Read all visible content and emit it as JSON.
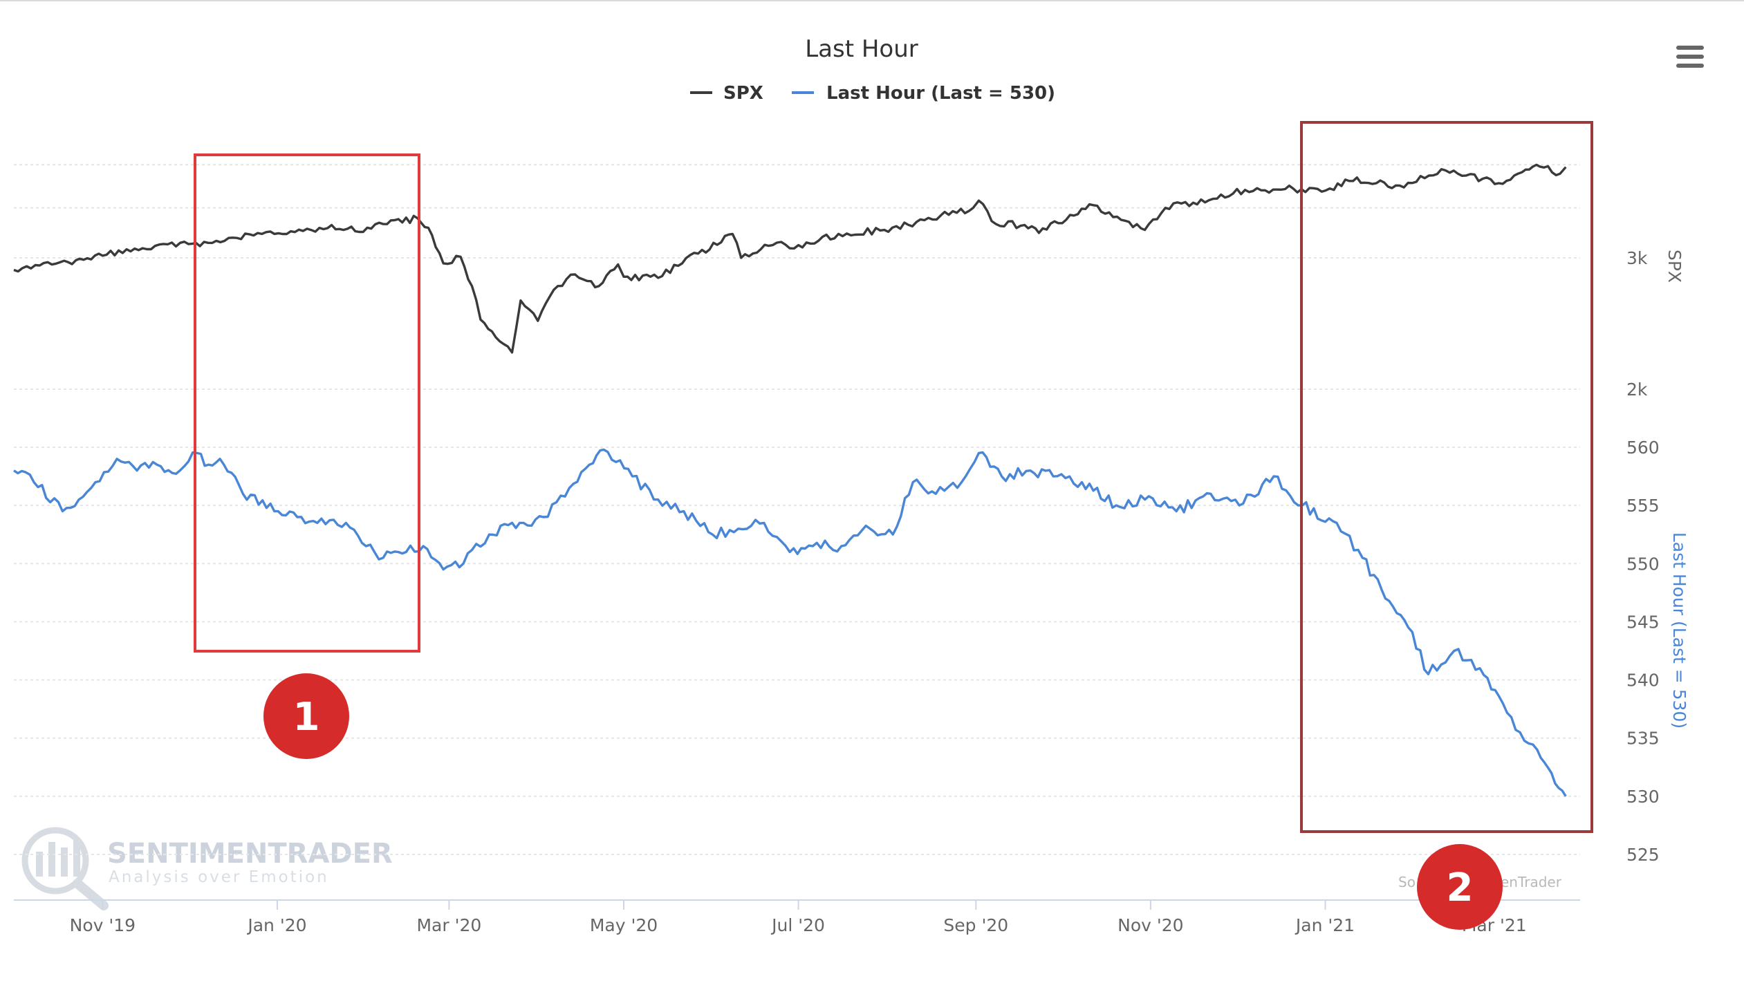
{
  "menu_icon": "hamburger-menu-icon",
  "watermark": {
    "brand": "SENTIMENTRADER",
    "tagline": "Analysis over Emotion",
    "logo_icon": "magnifier-chart-logo-icon",
    "credit_left": "So",
    "credit_right": "enTrader"
  },
  "annotations": [
    {
      "label": "1",
      "color": "#d62b2b",
      "box_color": "#e03a3a",
      "x_range": [
        "Dec 2019",
        "Feb 2020"
      ]
    },
    {
      "label": "2",
      "color": "#d62b2b",
      "box_color": "#9b3a3a",
      "x_range": [
        "Dec 2020",
        "Mar 2021"
      ]
    }
  ],
  "colors": {
    "spx": "#3a3a3a",
    "last_hour": "#4a86d6",
    "grid": "#e6e6e6"
  },
  "chart_data": {
    "type": "line",
    "title": "Last Hour",
    "legend_position": "top-center",
    "grid": true,
    "x": {
      "type": "date",
      "start": "2019-10-01",
      "end": "2021-03-31",
      "tick_labels": [
        "Nov '19",
        "Jan '20",
        "Mar '20",
        "May '20",
        "Jul '20",
        "Sep '20",
        "Nov '20",
        "Jan '21",
        "Mar '21"
      ],
      "tick_dates": [
        "2019-11-01",
        "2020-01-01",
        "2020-03-01",
        "2020-05-01",
        "2020-07-01",
        "2020-09-01",
        "2020-11-01",
        "2021-01-01",
        "2021-03-01"
      ]
    },
    "y_axes": [
      {
        "name": "SPX",
        "title": "SPX",
        "scale": "log",
        "tick_labels": [
          "2k",
          "3k"
        ],
        "tick_values": [
          2000,
          3000
        ],
        "range": [
          2000,
          4200
        ]
      },
      {
        "name": "Last Hour",
        "title": "Last Hour (Last = 530)",
        "scale": "linear",
        "tick_labels": [
          "525",
          "530",
          "535",
          "540",
          "545",
          "550",
          "555",
          "560"
        ],
        "tick_values": [
          525,
          530,
          535,
          540,
          545,
          550,
          555,
          560
        ],
        "range": [
          525,
          562
        ]
      }
    ],
    "series": [
      {
        "name": "SPX",
        "legend": "SPX",
        "axis": 0,
        "points": [
          [
            "2019-10-01",
            2890
          ],
          [
            "2019-10-10",
            2930
          ],
          [
            "2019-10-20",
            2960
          ],
          [
            "2019-11-01",
            3020
          ],
          [
            "2019-11-15",
            3090
          ],
          [
            "2019-12-01",
            3130
          ],
          [
            "2019-12-05",
            3110
          ],
          [
            "2019-12-15",
            3190
          ],
          [
            "2019-12-31",
            3230
          ],
          [
            "2020-01-10",
            3260
          ],
          [
            "2020-01-20",
            3320
          ],
          [
            "2020-01-31",
            3250
          ],
          [
            "2020-02-07",
            3330
          ],
          [
            "2020-02-19",
            3390
          ],
          [
            "2020-02-24",
            3220
          ],
          [
            "2020-02-28",
            2950
          ],
          [
            "2020-03-05",
            3010
          ],
          [
            "2020-03-09",
            2750
          ],
          [
            "2020-03-12",
            2480
          ],
          [
            "2020-03-16",
            2390
          ],
          [
            "2020-03-20",
            2300
          ],
          [
            "2020-03-23",
            2240
          ],
          [
            "2020-03-26",
            2630
          ],
          [
            "2020-04-01",
            2470
          ],
          [
            "2020-04-08",
            2750
          ],
          [
            "2020-04-14",
            2850
          ],
          [
            "2020-04-21",
            2740
          ],
          [
            "2020-04-29",
            2940
          ],
          [
            "2020-05-01",
            2830
          ],
          [
            "2020-05-13",
            2820
          ],
          [
            "2020-05-27",
            3040
          ],
          [
            "2020-06-08",
            3230
          ],
          [
            "2020-06-11",
            3000
          ],
          [
            "2020-06-22",
            3120
          ],
          [
            "2020-07-01",
            3120
          ],
          [
            "2020-07-15",
            3230
          ],
          [
            "2020-07-31",
            3270
          ],
          [
            "2020-08-14",
            3370
          ],
          [
            "2020-08-31",
            3500
          ],
          [
            "2020-09-02",
            3580
          ],
          [
            "2020-09-08",
            3330
          ],
          [
            "2020-09-18",
            3320
          ],
          [
            "2020-09-23",
            3240
          ],
          [
            "2020-10-12",
            3530
          ],
          [
            "2020-10-30",
            3270
          ],
          [
            "2020-11-09",
            3550
          ],
          [
            "2020-11-20",
            3560
          ],
          [
            "2020-12-04",
            3700
          ],
          [
            "2020-12-18",
            3710
          ],
          [
            "2021-01-04",
            3700
          ],
          [
            "2021-01-08",
            3820
          ],
          [
            "2021-01-27",
            3750
          ],
          [
            "2021-02-12",
            3930
          ],
          [
            "2021-02-25",
            3830
          ],
          [
            "2021-03-04",
            3770
          ],
          [
            "2021-03-12",
            3940
          ],
          [
            "2021-03-17",
            3975
          ],
          [
            "2021-03-24",
            3890
          ],
          [
            "2021-03-26",
            3970
          ]
        ]
      },
      {
        "name": "Last Hour",
        "legend": "Last Hour (Last = 530)",
        "axis": 1,
        "points": [
          [
            "2019-10-01",
            558
          ],
          [
            "2019-10-08",
            557
          ],
          [
            "2019-10-18",
            554.5
          ],
          [
            "2019-10-28",
            556.5
          ],
          [
            "2019-11-06",
            559
          ],
          [
            "2019-11-13",
            558
          ],
          [
            "2019-11-20",
            558.5
          ],
          [
            "2019-11-28",
            558
          ],
          [
            "2019-12-04",
            559.5
          ],
          [
            "2019-12-08",
            558.5
          ],
          [
            "2019-12-12",
            559
          ],
          [
            "2019-12-20",
            556
          ],
          [
            "2019-12-31",
            554.5
          ],
          [
            "2020-01-08",
            554
          ],
          [
            "2020-01-15",
            553.5
          ],
          [
            "2020-01-25",
            553.5
          ],
          [
            "2020-02-01",
            551.5
          ],
          [
            "2020-02-07",
            550.5
          ],
          [
            "2020-02-15",
            551
          ],
          [
            "2020-02-21",
            551.5
          ],
          [
            "2020-02-28",
            549.5
          ],
          [
            "2020-03-06",
            550
          ],
          [
            "2020-03-15",
            552.5
          ],
          [
            "2020-03-27",
            553.5
          ],
          [
            "2020-04-03",
            554
          ],
          [
            "2020-04-12",
            556.5
          ],
          [
            "2020-04-19",
            558.5
          ],
          [
            "2020-04-24",
            559.8
          ],
          [
            "2020-05-04",
            557.5
          ],
          [
            "2020-05-13",
            555.5
          ],
          [
            "2020-05-22",
            554.5
          ],
          [
            "2020-06-01",
            552.5
          ],
          [
            "2020-06-10",
            553
          ],
          [
            "2020-06-19",
            553.5
          ],
          [
            "2020-06-28",
            551
          ],
          [
            "2020-07-06",
            551.5
          ],
          [
            "2020-07-16",
            551.5
          ],
          [
            "2020-07-26",
            553
          ],
          [
            "2020-08-03",
            552.5
          ],
          [
            "2020-08-10",
            557
          ],
          [
            "2020-08-18",
            556
          ],
          [
            "2020-08-27",
            557
          ],
          [
            "2020-09-02",
            559.5
          ],
          [
            "2020-09-10",
            557.5
          ],
          [
            "2020-09-20",
            558
          ],
          [
            "2020-09-28",
            557.5
          ],
          [
            "2020-10-08",
            557
          ],
          [
            "2020-10-20",
            555
          ],
          [
            "2020-10-30",
            555.5
          ],
          [
            "2020-11-10",
            554.5
          ],
          [
            "2020-11-22",
            556
          ],
          [
            "2020-12-02",
            555
          ],
          [
            "2020-12-14",
            557.5
          ],
          [
            "2020-12-24",
            555
          ],
          [
            "2021-01-05",
            553.5
          ],
          [
            "2021-01-14",
            550.5
          ],
          [
            "2021-01-22",
            547
          ],
          [
            "2021-01-30",
            544.5
          ],
          [
            "2021-02-06",
            540.5
          ],
          [
            "2021-02-15",
            542.5
          ],
          [
            "2021-02-24",
            541
          ],
          [
            "2021-03-04",
            538
          ],
          [
            "2021-03-10",
            535.5
          ],
          [
            "2021-03-16",
            534
          ],
          [
            "2021-03-21",
            532
          ],
          [
            "2021-03-26",
            530
          ]
        ]
      }
    ]
  }
}
